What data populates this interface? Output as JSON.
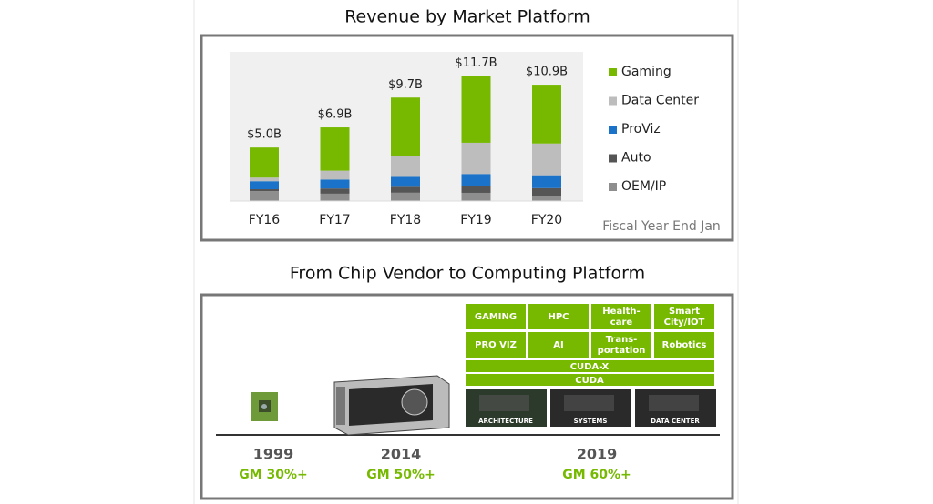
{
  "chart_data": {
    "type": "bar",
    "stacked": true,
    "title": "Revenue by Market Platform",
    "categories": [
      "FY16",
      "FY17",
      "FY18",
      "FY19",
      "FY20"
    ],
    "series": [
      {
        "name": "Gaming",
        "color": "#76b900",
        "values": [
          2.82,
          4.06,
          5.51,
          6.25,
          5.52
        ]
      },
      {
        "name": "Data Center",
        "color": "#bdbdbd",
        "values": [
          0.34,
          0.83,
          1.93,
          2.93,
          2.98
        ]
      },
      {
        "name": "ProViz",
        "color": "#1a73c8",
        "values": [
          0.75,
          0.84,
          0.93,
          1.13,
          1.21
        ]
      },
      {
        "name": "Auto",
        "color": "#555555",
        "values": [
          0.18,
          0.49,
          0.56,
          0.64,
          0.7
        ]
      },
      {
        "name": "OEM/IP",
        "color": "#8e8e8e",
        "values": [
          0.93,
          0.69,
          0.78,
          0.77,
          0.51
        ]
      }
    ],
    "totals": {
      "values": [
        5.0,
        6.9,
        9.7,
        11.7,
        10.9
      ],
      "value_labels": [
        "$5.0B",
        "$6.9B",
        "$9.7B",
        "$11.7B",
        "$10.9B"
      ]
    },
    "note": "Fiscal Year End Jan",
    "ylim": [
      0,
      14
    ],
    "grid": false,
    "legend": "right"
  },
  "platform": {
    "title": "From Chip Vendor to Computing Platform",
    "timeline": [
      {
        "year": "1999",
        "gm": "GM 30%+"
      },
      {
        "year": "2014",
        "gm": "GM  50%+"
      },
      {
        "year": "2019",
        "gm": "GM  60%+"
      }
    ],
    "tiles": [
      [
        [
          "GAMING"
        ],
        [
          "HPC"
        ],
        [
          "Health-",
          "care"
        ],
        [
          "Smart",
          "City/IOT"
        ]
      ],
      [
        [
          "PRO VIZ"
        ],
        [
          "AI"
        ],
        [
          "Trans-",
          "portation"
        ],
        [
          "Robotics"
        ]
      ]
    ],
    "layers": [
      "CUDA-X",
      "CUDA"
    ],
    "images": [
      "ARCHITECTURE",
      "SYSTEMS",
      "DATA CENTER"
    ]
  }
}
